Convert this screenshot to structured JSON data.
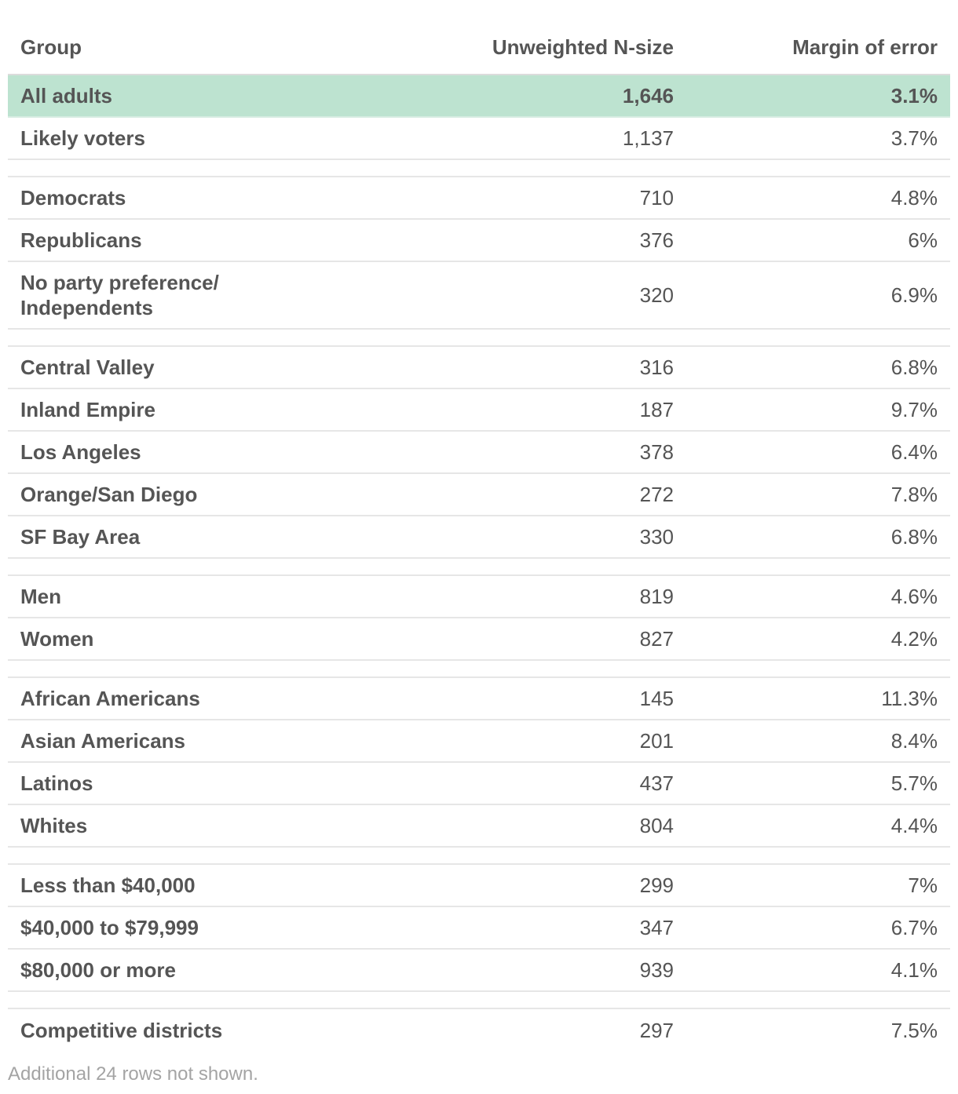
{
  "table": {
    "headers": {
      "group": "Group",
      "n_size": "Unweighted N-size",
      "margin": "Margin of error"
    },
    "highlight": {
      "group": "All adults",
      "n": "1,646",
      "moe": "3.1%"
    },
    "rows": [
      {
        "group": "Likely voters",
        "n": "1,137",
        "moe": "3.7%"
      },
      {
        "group": "Democrats",
        "n": "710",
        "moe": "4.8%"
      },
      {
        "group": "Republicans",
        "n": "376",
        "moe": "6%"
      },
      {
        "group_line1": "No party preference/",
        "group_line2": "Independents",
        "n": "320",
        "moe": "6.9%"
      },
      {
        "group": "Central Valley",
        "n": "316",
        "moe": "6.8%"
      },
      {
        "group": "Inland Empire",
        "n": "187",
        "moe": "9.7%"
      },
      {
        "group": "Los Angeles",
        "n": "378",
        "moe": "6.4%"
      },
      {
        "group": "Orange/San Diego",
        "n": "272",
        "moe": "7.8%"
      },
      {
        "group": "SF Bay Area",
        "n": "330",
        "moe": "6.8%"
      },
      {
        "group": "Men",
        "n": "819",
        "moe": "4.6%"
      },
      {
        "group": "Women",
        "n": "827",
        "moe": "4.2%"
      },
      {
        "group": "African Americans",
        "n": "145",
        "moe": "11.3%"
      },
      {
        "group": "Asian Americans",
        "n": "201",
        "moe": "8.4%"
      },
      {
        "group": "Latinos",
        "n": "437",
        "moe": "5.7%"
      },
      {
        "group": "Whites",
        "n": "804",
        "moe": "4.4%"
      },
      {
        "group": "Less than $40,000",
        "n": "299",
        "moe": "7%"
      },
      {
        "group": "$40,000 to $79,999",
        "n": "347",
        "moe": "6.7%"
      },
      {
        "group": "$80,000 or more",
        "n": "939",
        "moe": "4.1%"
      },
      {
        "group": "Competitive districts",
        "n": "297",
        "moe": "7.5%"
      }
    ],
    "footnote": "Additional 24 rows not shown.",
    "highlight_color": "#bde3d0"
  }
}
